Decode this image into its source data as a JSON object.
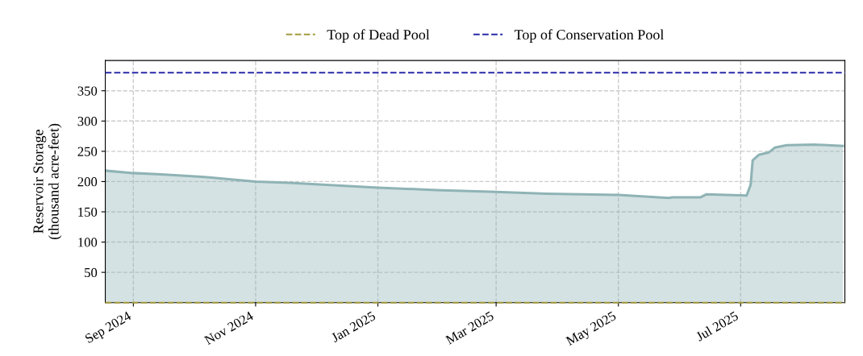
{
  "chart_data": {
    "type": "area",
    "ylabel": "Reservoir Storage\n(thousand acre-feet)",
    "series": [
      {
        "color": "#8fb3b5",
        "x": [
          "2024-08-18",
          "2024-09-01",
          "2024-09-15",
          "2024-10-05",
          "2024-11-01",
          "2024-11-18",
          "2025-01-01",
          "2025-01-30",
          "2025-03-01",
          "2025-03-26",
          "2025-05-01",
          "2025-05-26",
          "2025-05-28",
          "2025-06-11",
          "2025-06-14",
          "2025-07-04",
          "2025-07-06",
          "2025-07-07",
          "2025-07-10",
          "2025-07-15",
          "2025-07-18",
          "2025-07-24",
          "2025-08-07",
          "2025-08-21"
        ],
        "values": [
          218,
          214,
          212,
          208,
          200,
          198,
          190,
          186,
          183,
          180,
          178,
          173,
          174,
          174,
          179,
          177,
          195,
          235,
          244,
          248,
          256,
          260,
          261,
          259
        ]
      }
    ],
    "xlim": [
      "2024-08-18",
      "2025-08-22"
    ],
    "xticks": [
      {
        "value": "2024-09-01",
        "label": "Sep 2024"
      },
      {
        "value": "2024-11-01",
        "label": "Nov 2024"
      },
      {
        "value": "2025-01-01",
        "label": "Jan 2025"
      },
      {
        "value": "2025-03-01",
        "label": "Mar 2025"
      },
      {
        "value": "2025-05-01",
        "label": "May 2025"
      },
      {
        "value": "2025-07-01",
        "label": "Jul 2025"
      }
    ],
    "ylim": [
      0,
      400
    ],
    "yticks": [
      50,
      100,
      150,
      200,
      250,
      300,
      350
    ],
    "ref_lines": [
      {
        "axis": "y",
        "value": 0,
        "label": "Top of Dead Pool",
        "color": "#a39a3c",
        "line_style": "dashed"
      },
      {
        "axis": "y",
        "value": 380,
        "label": "Top of Conservation Pool",
        "color": "#2a2aa8",
        "line_style": "dashed"
      }
    ],
    "grid": true,
    "legend": "top"
  }
}
